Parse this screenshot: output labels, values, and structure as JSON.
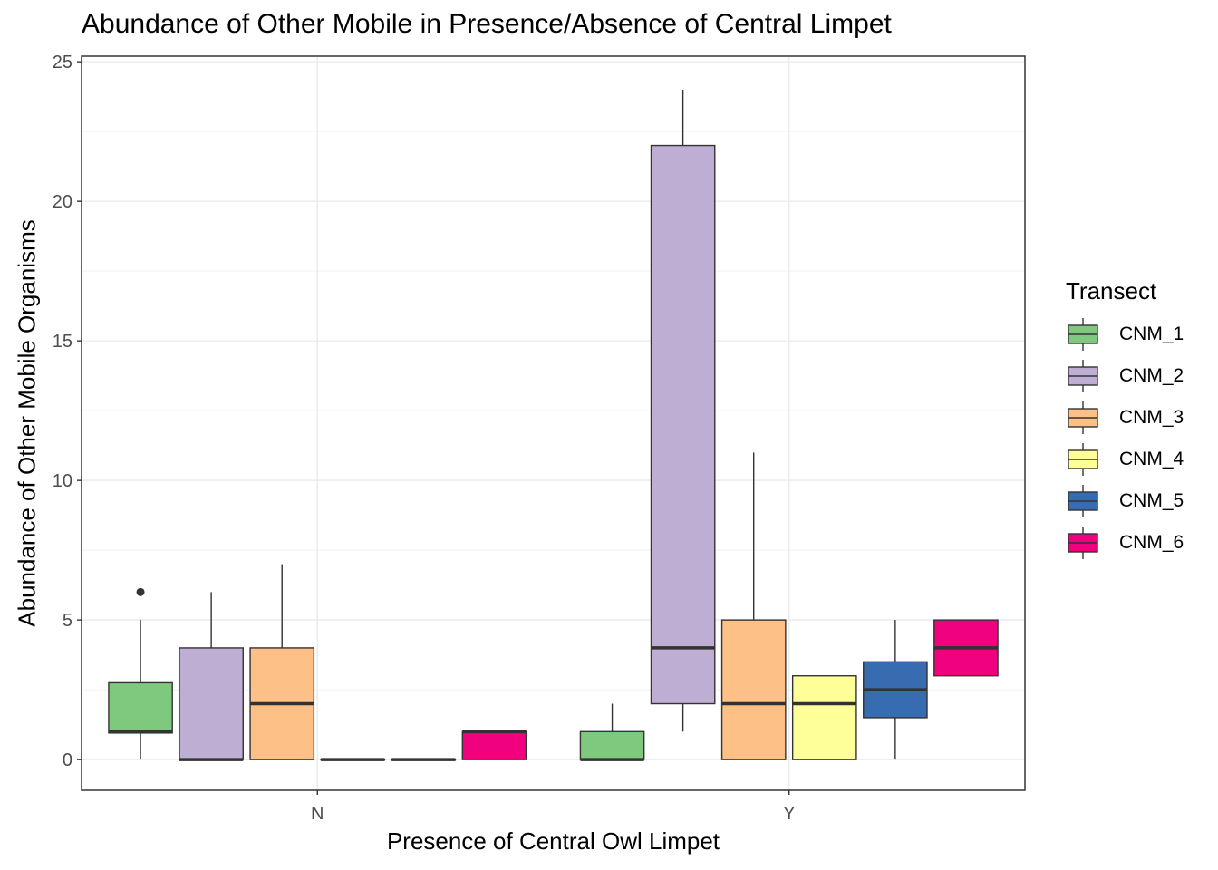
{
  "chart_data": {
    "type": "box",
    "title": "Abundance of Other Mobile in Presence/Absence of Central Limpet",
    "xlabel": "Presence of Central Owl Limpet",
    "ylabel": "Abundance of Other Mobile Organisms",
    "categories": [
      "N",
      "Y"
    ],
    "yticks": [
      0,
      5,
      10,
      15,
      20,
      25
    ],
    "ylim": [
      -1.1,
      25.2
    ],
    "grid": true,
    "legend": {
      "title": "Transect",
      "position": "right"
    },
    "series": [
      {
        "name": "CNM_1",
        "color": "#7FC97F",
        "boxes": [
          {
            "category": "N",
            "min": 0,
            "q1": 0.95,
            "median": 1,
            "q3": 2.75,
            "max": 5,
            "outliers": [
              6
            ]
          },
          {
            "category": "Y",
            "min": 0,
            "q1": 0,
            "median": 0,
            "q3": 1,
            "max": 2,
            "outliers": []
          }
        ]
      },
      {
        "name": "CNM_2",
        "color": "#BEAED4",
        "boxes": [
          {
            "category": "N",
            "min": 0,
            "q1": 0,
            "median": 0,
            "q3": 4,
            "max": 6,
            "outliers": []
          },
          {
            "category": "Y",
            "min": 1,
            "q1": 2,
            "median": 4,
            "q3": 22,
            "max": 24,
            "outliers": []
          }
        ]
      },
      {
        "name": "CNM_3",
        "color": "#FDC086",
        "boxes": [
          {
            "category": "N",
            "min": 0,
            "q1": 0,
            "median": 2,
            "q3": 4,
            "max": 7,
            "outliers": []
          },
          {
            "category": "Y",
            "min": 0,
            "q1": 0,
            "median": 2,
            "q3": 5,
            "max": 11,
            "outliers": []
          }
        ]
      },
      {
        "name": "CNM_4",
        "color": "#FFFF99",
        "boxes": [
          {
            "category": "N",
            "min": 0,
            "q1": 0,
            "median": 0,
            "q3": 0,
            "max": 0,
            "outliers": []
          },
          {
            "category": "Y",
            "min": 0,
            "q1": 0,
            "median": 2,
            "q3": 3,
            "max": 3,
            "outliers": []
          }
        ]
      },
      {
        "name": "CNM_5",
        "color": "#386CB0",
        "boxes": [
          {
            "category": "N",
            "min": 0,
            "q1": 0,
            "median": 0,
            "q3": 0,
            "max": 0,
            "outliers": []
          },
          {
            "category": "Y",
            "min": 0,
            "q1": 1.5,
            "median": 2.5,
            "q3": 3.5,
            "max": 5,
            "outliers": []
          }
        ]
      },
      {
        "name": "CNM_6",
        "color": "#F0027F",
        "boxes": [
          {
            "category": "N",
            "min": 0,
            "q1": 0,
            "median": 1,
            "q3": 1,
            "max": 1,
            "outliers": []
          },
          {
            "category": "Y",
            "min": 3,
            "q1": 3,
            "median": 4,
            "q3": 5,
            "max": 5,
            "outliers": []
          }
        ]
      }
    ]
  }
}
